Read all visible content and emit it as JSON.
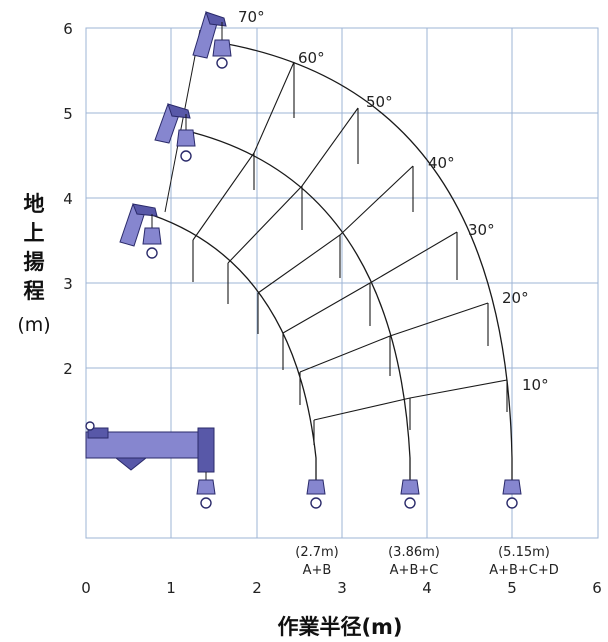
{
  "axes": {
    "x_ticks": [
      "0",
      "1",
      "2",
      "3",
      "4",
      "5",
      "6"
    ],
    "y_ticks": [
      "2",
      "3",
      "4",
      "5",
      "6"
    ],
    "xlabel": "作業半径(m)",
    "ylabel_chars": [
      "地",
      "上",
      "揚",
      "程"
    ],
    "ylabel_unit": "(m)"
  },
  "angles": [
    "10°",
    "20°",
    "30°",
    "40°",
    "50°",
    "60°",
    "70°"
  ],
  "booms": [
    {
      "length_label": "(2.7m)",
      "sections": "A+B"
    },
    {
      "length_label": "(3.86m)",
      "sections": "A+B+C"
    },
    {
      "length_label": "(5.15m)",
      "sections": "A+B+C+D"
    }
  ],
  "colors": {
    "crane": "#8686cf",
    "grid": "#9db4d6",
    "arc": "#1a1a1a"
  }
}
